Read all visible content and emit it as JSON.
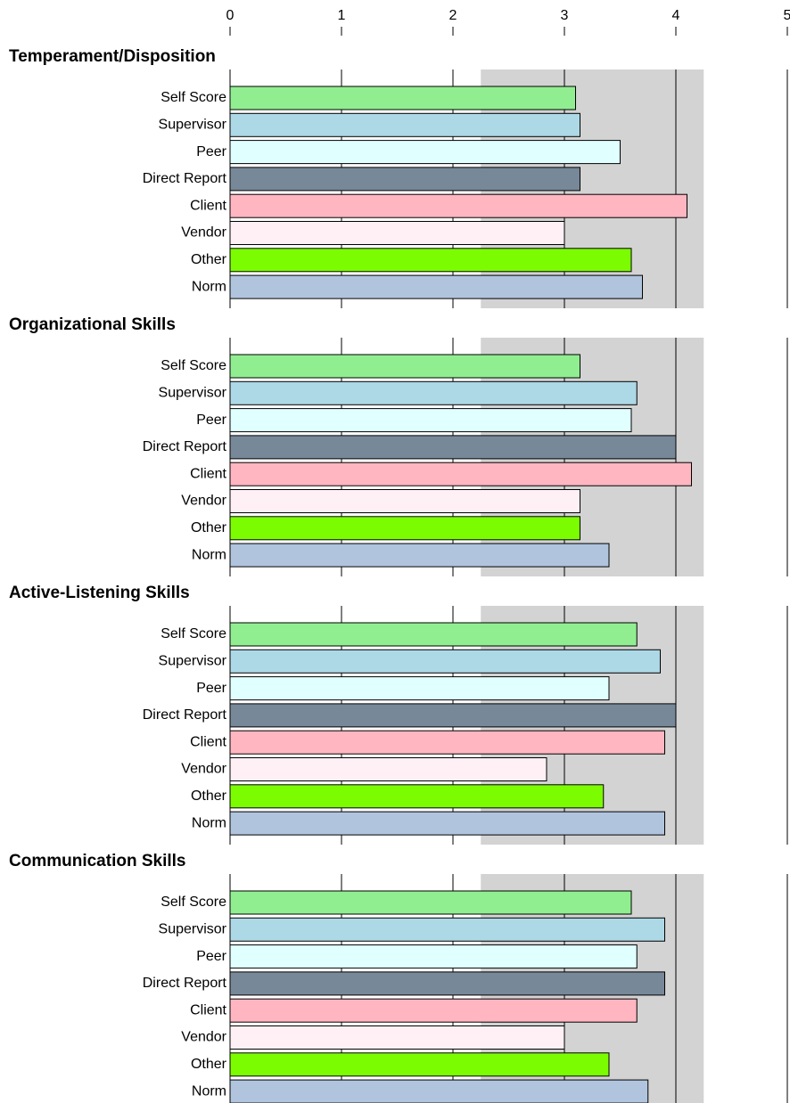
{
  "chart_data": {
    "type": "bar",
    "orientation": "horizontal",
    "xlim": [
      0,
      5
    ],
    "xticks": [
      0,
      1,
      2,
      3,
      4,
      5
    ],
    "band": [
      2.25,
      4.25
    ],
    "band_color": "#d3d3d3",
    "categories": [
      "Self Score",
      "Supervisor",
      "Peer",
      "Direct Report",
      "Client",
      "Vendor",
      "Other",
      "Norm"
    ],
    "colors": [
      "#90ee90",
      "#add8e6",
      "#e0ffff",
      "#778899",
      "#ffb6c1",
      "#fff0f5",
      "#7cfc00",
      "#b0c4de"
    ],
    "groups": [
      {
        "title": "Temperament/Disposition",
        "values": [
          3.1,
          3.14,
          3.5,
          3.14,
          4.1,
          3.0,
          3.6,
          3.7
        ]
      },
      {
        "title": "Organizational Skills",
        "values": [
          3.14,
          3.65,
          3.6,
          4.0,
          4.14,
          3.14,
          3.14,
          3.4
        ]
      },
      {
        "title": "Active-Listening Skills",
        "values": [
          3.65,
          3.86,
          3.4,
          4.0,
          3.9,
          2.84,
          3.35,
          3.9
        ]
      },
      {
        "title": "Communication Skills",
        "values": [
          3.6,
          3.9,
          3.65,
          3.9,
          3.65,
          3.0,
          3.4,
          3.75
        ]
      }
    ]
  }
}
